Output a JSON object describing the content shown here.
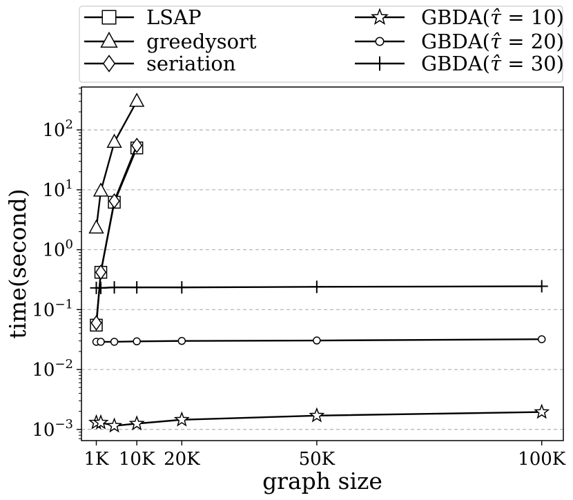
{
  "chart_data": {
    "type": "line",
    "xlabel": "graph size",
    "ylabel": "time(second)",
    "yscale": "log",
    "xlim": [
      -2300,
      104800
    ],
    "ylim": [
      0.00065,
      520
    ],
    "grid": "horizontal dashed at major y ticks",
    "legend_position": "above plot, two columns",
    "x_ticks": [
      {
        "value": 1000,
        "label": "1K"
      },
      {
        "value": 10000,
        "label": "10K"
      },
      {
        "value": 20000,
        "label": "20K"
      },
      {
        "value": 50000,
        "label": "50K"
      },
      {
        "value": 100000,
        "label": "100K"
      }
    ],
    "y_ticks": [
      {
        "value": 0.001,
        "base": "10",
        "exp": "−3"
      },
      {
        "value": 0.01,
        "base": "10",
        "exp": "−2"
      },
      {
        "value": 0.1,
        "base": "10",
        "exp": "−1"
      },
      {
        "value": 1,
        "base": "10",
        "exp": "0"
      },
      {
        "value": 10,
        "base": "10",
        "exp": "1"
      },
      {
        "value": 100,
        "base": "10",
        "exp": "2"
      }
    ],
    "series": [
      {
        "name": "LSAP",
        "marker": "square",
        "x": [
          1000,
          2000,
          5000,
          10000
        ],
        "y": [
          0.055,
          0.42,
          6.2,
          50
        ]
      },
      {
        "name": "greedysort",
        "marker": "triangle",
        "x": [
          1000,
          2000,
          5000,
          10000
        ],
        "y": [
          2.3,
          9.5,
          62,
          300
        ]
      },
      {
        "name": "seriation",
        "marker": "diamond",
        "x": [
          1000,
          2000,
          5000,
          10000
        ],
        "y": [
          0.06,
          0.42,
          6.5,
          55
        ]
      },
      {
        "name": "GBDA(τ̂ = 10)",
        "marker": "star",
        "x": [
          1000,
          2000,
          5000,
          10000,
          20000,
          50000,
          100000
        ],
        "y": [
          0.0013,
          0.0013,
          0.00115,
          0.00125,
          0.00145,
          0.0017,
          0.00195
        ]
      },
      {
        "name": "GBDA(τ̂ = 20)",
        "marker": "circle",
        "x": [
          1000,
          2000,
          5000,
          10000,
          20000,
          50000,
          100000
        ],
        "y": [
          0.029,
          0.029,
          0.029,
          0.0295,
          0.03,
          0.0305,
          0.032
        ]
      },
      {
        "name": "GBDA(τ̂ = 30)",
        "marker": "plus",
        "x": [
          1000,
          2000,
          5000,
          10000,
          20000,
          50000,
          100000
        ],
        "y": [
          0.23,
          0.23,
          0.235,
          0.235,
          0.235,
          0.24,
          0.245
        ]
      }
    ],
    "legend": [
      {
        "series": 0,
        "label_main": "LSAP",
        "label_tail": ""
      },
      {
        "series": 1,
        "label_main": "greedysort",
        "label_tail": ""
      },
      {
        "series": 2,
        "label_main": "seriation",
        "label_tail": ""
      },
      {
        "series": 3,
        "label_main": "GBDA(",
        "label_tail": " = 10)"
      },
      {
        "series": 4,
        "label_main": "GBDA(",
        "label_tail": " = 20)"
      },
      {
        "series": 5,
        "label_main": "GBDA(",
        "label_tail": " = 30)"
      }
    ],
    "tau_symbol": "τ̂"
  }
}
